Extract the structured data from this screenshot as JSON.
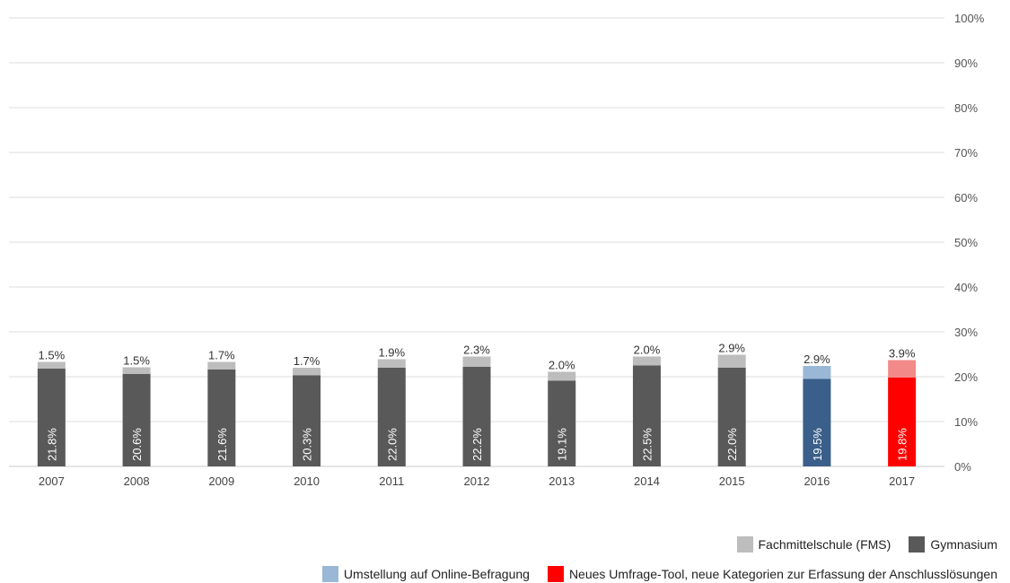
{
  "chart_data": {
    "type": "bar",
    "stacked": true,
    "categories": [
      "2007",
      "2008",
      "2009",
      "2010",
      "2011",
      "2012",
      "2013",
      "2014",
      "2015",
      "2016",
      "2017"
    ],
    "series": [
      {
        "name": "Gymnasium",
        "values": [
          21.8,
          20.6,
          21.6,
          20.3,
          22.0,
          22.2,
          19.1,
          22.5,
          22.0,
          19.5,
          19.8
        ],
        "labels": [
          "21.8%",
          "20.6%",
          "21.6%",
          "20.3%",
          "22.0%",
          "22.2%",
          "19.1%",
          "22.5%",
          "22.0%",
          "19.5%",
          "19.8%"
        ]
      },
      {
        "name": "Fachmittelschule (FMS)",
        "values": [
          1.5,
          1.5,
          1.7,
          1.7,
          1.9,
          2.3,
          2.0,
          2.0,
          2.9,
          2.9,
          3.9
        ],
        "labels": [
          "1.5%",
          "1.5%",
          "1.7%",
          "1.7%",
          "1.9%",
          "2.3%",
          "2.0%",
          "2.0%",
          "2.9%",
          "2.9%",
          "3.9%"
        ]
      }
    ],
    "ylim": [
      0,
      100
    ],
    "y_ticks": [
      "0%",
      "10%",
      "20%",
      "30%",
      "40%",
      "50%",
      "60%",
      "70%",
      "80%",
      "90%",
      "100%"
    ],
    "y_axis_side": "right",
    "grid": true,
    "legend_position": "bottom-right",
    "colors": {
      "gymnasium": "#595959",
      "fms": "#bdbdbd",
      "gymnasium_2016": "#3a5f8a",
      "fms_2016": "#9ab8d6",
      "gymnasium_2017": "#ff0000",
      "fms_2017": "#f28a8a"
    }
  },
  "legend": {
    "fms": "Fachmittelschule (FMS)",
    "gymnasium": "Gymnasium",
    "online": "Umstellung auf Online-Befragung",
    "new_tool": "Neues Umfrage-Tool, neue Kategorien zur Erfassung der Anschlusslösungen"
  },
  "legend_colors": {
    "fms": "#bdbdbd",
    "gymnasium": "#595959",
    "online": "#9ab8d6",
    "new_tool": "#ff0000"
  }
}
